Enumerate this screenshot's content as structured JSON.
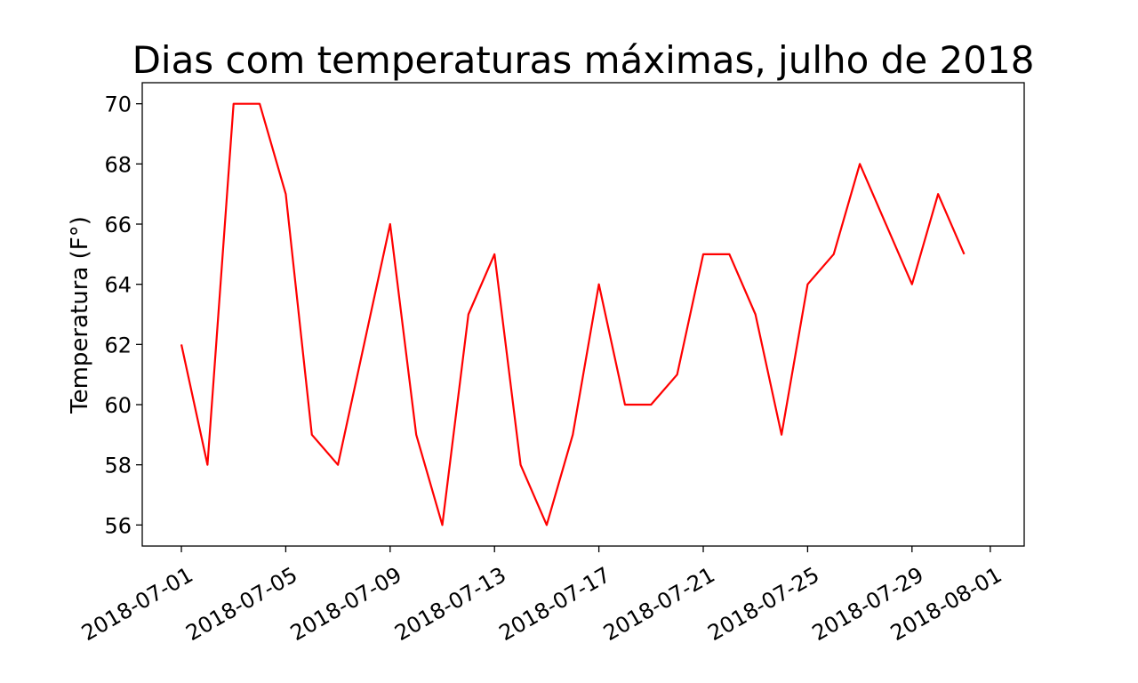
{
  "chart_data": {
    "type": "line",
    "title": "Dias com temperaturas máximas, julho de 2018",
    "xlabel": "",
    "ylabel": "Temperatura (F°)",
    "ylim": [
      55.3,
      70.7
    ],
    "xlim": [
      "2018-06-29.5",
      "2018-08-02.3"
    ],
    "yticks": [
      56,
      58,
      60,
      62,
      64,
      66,
      68,
      70
    ],
    "xticks": [
      "2018-07-01",
      "2018-07-05",
      "2018-07-09",
      "2018-07-13",
      "2018-07-17",
      "2018-07-21",
      "2018-07-25",
      "2018-07-29",
      "2018-08-01"
    ],
    "grid": false,
    "line_color": "#ff0000",
    "series": [
      {
        "x": [
          "2018-07-01",
          "2018-07-02",
          "2018-07-03",
          "2018-07-04",
          "2018-07-05",
          "2018-07-06",
          "2018-07-07",
          "2018-07-08",
          "2018-07-09",
          "2018-07-10",
          "2018-07-11",
          "2018-07-12",
          "2018-07-13",
          "2018-07-14",
          "2018-07-15",
          "2018-07-16",
          "2018-07-17",
          "2018-07-18",
          "2018-07-19",
          "2018-07-20",
          "2018-07-21",
          "2018-07-22",
          "2018-07-23",
          "2018-07-24",
          "2018-07-25",
          "2018-07-26",
          "2018-07-27",
          "2018-07-28",
          "2018-07-29",
          "2018-07-30",
          "2018-07-31"
        ],
        "values": [
          62,
          58,
          70,
          70,
          67,
          59,
          58,
          62,
          66,
          59,
          56,
          63,
          65,
          58,
          56,
          59,
          64,
          60,
          60,
          61,
          65,
          65,
          63,
          59,
          64,
          65,
          68,
          66,
          64,
          67,
          65
        ]
      }
    ]
  }
}
